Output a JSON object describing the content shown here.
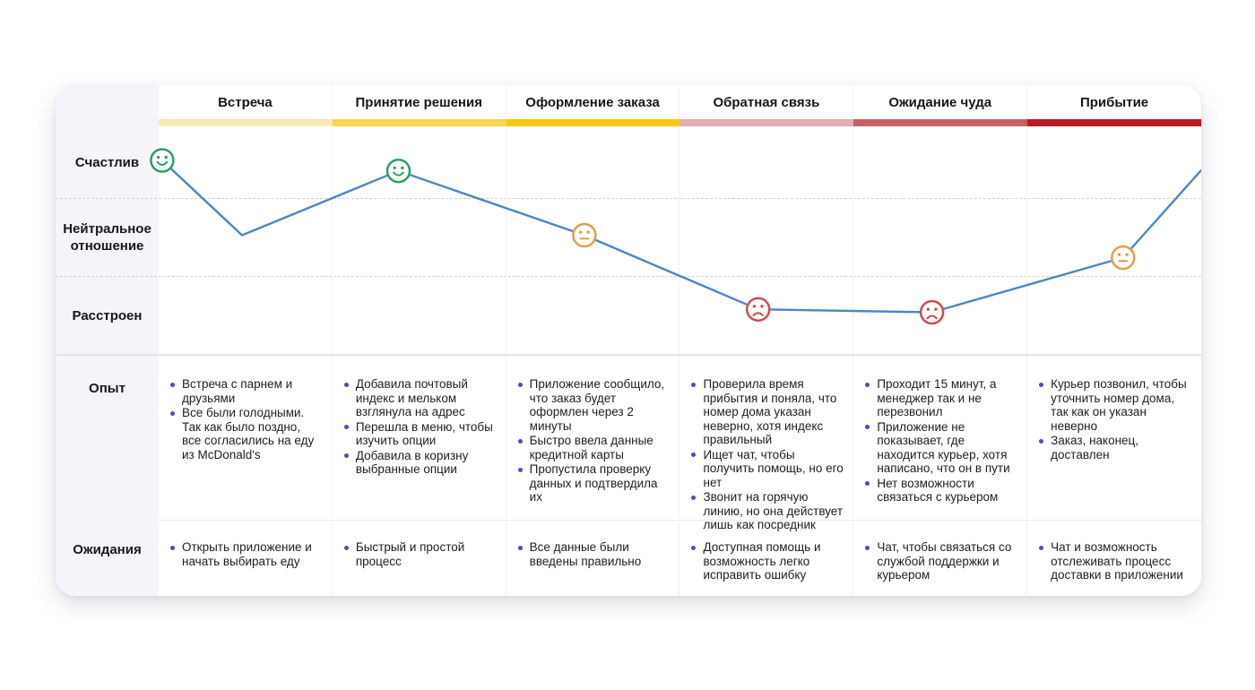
{
  "journey_map": {
    "bullet_color": "#5B43C4",
    "row_headers": {
      "experience": "Опыт",
      "expectations": "Ожидания"
    },
    "emotion_levels": [
      "Счастлив",
      "Нейтральное отношение",
      "Расстроен"
    ],
    "stages": [
      {
        "label": "Встреча",
        "bar_color": "#F7EBB1",
        "experience": [
          "Встреча с парнем и друзьями",
          "Все были голодными. Так как было поздно, все согласились на еду из McDonald's"
        ],
        "expectations": [
          "Открыть приложение и начать выбирать еду"
        ]
      },
      {
        "label": "Принятие решения",
        "bar_color": "#F8D54F",
        "experience": [
          "Добавила почтовый индекс и мельком взглянула на адрес",
          "Перешла в меню, чтобы изучить опции",
          "Добавила в коризну выбранные опции"
        ],
        "expectations": [
          "Быстрый и простой процесс"
        ]
      },
      {
        "label": "Оформление заказа",
        "bar_color": "#F7C70D",
        "experience": [
          "Приложение сообщило, что заказ будет оформлен через 2 минуты",
          "Быстро ввела данные кредитной карты",
          "Пропустила проверку данных и подтвердила их"
        ],
        "expectations": [
          "Все данные были введены правильно"
        ]
      },
      {
        "label": "Обратная связь",
        "bar_color": "#E2AEB2",
        "experience": [
          "Проверила время прибытия и поняла, что номер дома указан неверно, хотя индекс правильный",
          "Ищет чат, чтобы получить помощь, но его нет",
          "Звонит на горячую линию, но она действует лишь как посредник"
        ],
        "expectations": [
          "Доступная помощь и возможность легко исправить ошибку"
        ]
      },
      {
        "label": "Ожидание чуда",
        "bar_color": "#C95F66",
        "experience": [
          "Проходит 15 минут, а менеджер так и не перезвонил",
          "Приложение не показывает, где находится курьер, хотя написано, что он в пути",
          "Нет возможности связаться с курьером"
        ],
        "expectations": [
          "Чат, чтобы связаться со службой поддержки и курьером"
        ]
      },
      {
        "label": "Прибытие",
        "bar_color": "#BD1822",
        "experience": [
          "Курьер позвонил, чтобы уточнить номер дома, так как он указан неверно",
          "Заказ, наконец, доставлен"
        ],
        "expectations": [
          "Чат и возможность отслеживать процесс доставки в приложении"
        ]
      }
    ]
  },
  "chart_data": {
    "type": "line",
    "x_categories": [
      "Встреча",
      "Принятие решения",
      "Оформление заказа",
      "Обратная связь",
      "Ожидание чуда",
      "Прибытие"
    ],
    "y_levels": [
      "Счастлив",
      "Нейтральное отношение",
      "Расстроен"
    ],
    "x_unit": "stage position, 0–6 across the six columns",
    "y_unit": "emotion level: 1 = Счастлив, 2 = Нейтральное отношение, 3 = Расстроен",
    "line_color": "#4E86C6",
    "emoji_colors": {
      "happy": "#2D9C6C",
      "neutral": "#E0A04A",
      "sad": "#CE4B50"
    },
    "points": [
      [
        0.02,
        1.0
      ],
      [
        0.48,
        2.0
      ],
      [
        1.38,
        1.14
      ],
      [
        2.45,
        2.0
      ],
      [
        3.45,
        2.99
      ],
      [
        4.45,
        3.03
      ],
      [
        5.55,
        2.3
      ],
      [
        6.0,
        1.13
      ]
    ],
    "markers": [
      {
        "point": 0,
        "emoji": "happy"
      },
      {
        "point": 2,
        "emoji": "happy"
      },
      {
        "point": 3,
        "emoji": "neutral"
      },
      {
        "point": 4,
        "emoji": "sad"
      },
      {
        "point": 5,
        "emoji": "sad"
      },
      {
        "point": 6,
        "emoji": "neutral"
      }
    ]
  }
}
